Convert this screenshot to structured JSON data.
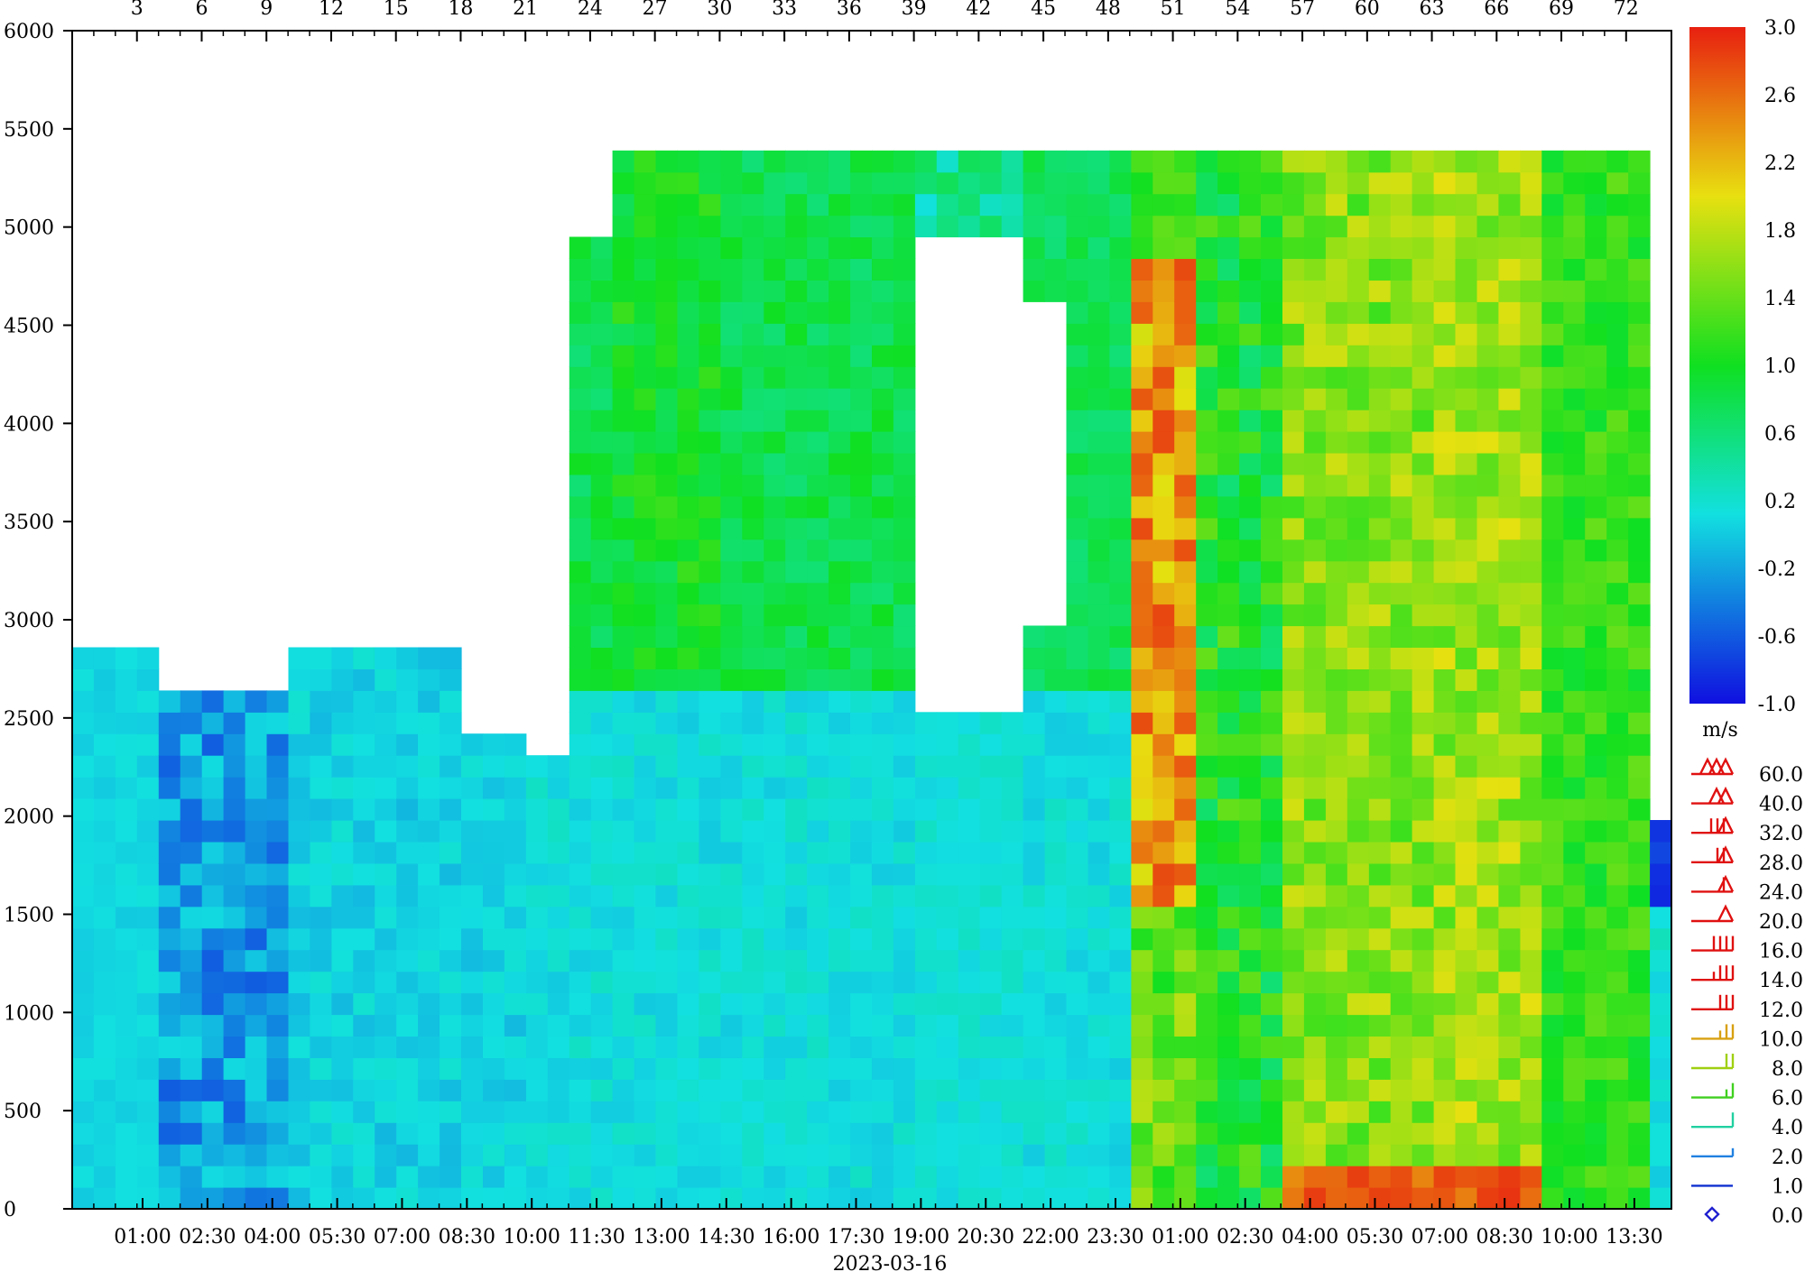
{
  "chart_data": {
    "type": "heatmap",
    "title": "",
    "xlabel": "2023-03-16",
    "ylabel": "",
    "value_unit": "m/s",
    "y_ticks": [
      0,
      500,
      1000,
      1500,
      2000,
      2500,
      3000,
      3500,
      4000,
      4500,
      5000,
      5500,
      6000
    ],
    "ylim": [
      0,
      6000
    ],
    "top_ticks": [
      "3",
      "6",
      "9",
      "12",
      "15",
      "18",
      "21",
      "24",
      "27",
      "30",
      "33",
      "36",
      "39",
      "42",
      "45",
      "48",
      "51",
      "54",
      "57",
      "60",
      "63",
      "66",
      "69",
      "72"
    ],
    "time_ticks": [
      "01:00",
      "02:30",
      "04:00",
      "05:30",
      "07:00",
      "08:30",
      "10:00",
      "11:30",
      "13:00",
      "14:30",
      "16:00",
      "17:30",
      "19:00",
      "20:30",
      "22:00",
      "23:30",
      "01:00",
      "02:30",
      "04:00",
      "05:30",
      "07:00",
      "08:30",
      "10:00",
      "13:30"
    ],
    "colorbar": {
      "ticks": [
        "3.0",
        "2.6",
        "2.2",
        "1.8",
        "1.4",
        "1.0",
        "0.6",
        "0.2",
        "-0.2",
        "-0.6",
        "-1.0"
      ],
      "range": [
        -1.0,
        3.0
      ],
      "colors": [
        "#1010e0",
        "#12e0e0",
        "#10e020",
        "#e8e010",
        "#e82010"
      ],
      "unit_label": "m/s"
    },
    "wind_legend": {
      "labels": [
        "60.0",
        "40.0",
        "32.0",
        "28.0",
        "24.0",
        "20.0",
        "16.0",
        "14.0",
        "12.0",
        "10.0",
        "8.0",
        "6.0",
        "4.0",
        "2.0",
        "1.0",
        "0.0"
      ],
      "colors": [
        "#e01010",
        "#e01010",
        "#e01010",
        "#e01010",
        "#e01010",
        "#e01010",
        "#e01010",
        "#e01010",
        "#e01010",
        "#d8a010",
        "#a0d010",
        "#40d020",
        "#20d0a0",
        "#2080e0",
        "#1030d0",
        "#2020d0"
      ]
    },
    "grid": {
      "columns": 74,
      "rows": 53,
      "cell_height_m": 110,
      "profiles": [
        {
          "col_start": 0,
          "col_end": 3,
          "top_m": 2900,
          "pattern": "low",
          "values": [
            0.0,
            0.15
          ]
        },
        {
          "col_start": 4,
          "col_end": 9,
          "top_m": 2650,
          "pattern": "low",
          "values": [
            -0.6,
            0.1
          ]
        },
        {
          "col_start": 10,
          "col_end": 13,
          "top_m": 2950,
          "pattern": "low",
          "values": [
            -0.1,
            0.2
          ]
        },
        {
          "col_start": 14,
          "col_end": 17,
          "top_m": 2900,
          "pattern": "low",
          "values": [
            -0.1,
            0.2
          ]
        },
        {
          "col_start": 18,
          "col_end": 20,
          "top_m": 2500,
          "pattern": "low",
          "values": [
            -0.1,
            0.2
          ]
        },
        {
          "col_start": 21,
          "col_end": 22,
          "top_m": 2400,
          "pattern": "low",
          "values": [
            0.0,
            0.25
          ]
        },
        {
          "col_start": 23,
          "col_end": 24,
          "top_m": 5000,
          "pattern": "low-high",
          "values": [
            0.0,
            1.0
          ]
        },
        {
          "col_start": 25,
          "col_end": 29,
          "top_m": 5450,
          "pattern": "low-high",
          "values": [
            0.0,
            1.2
          ]
        },
        {
          "col_start": 30,
          "col_end": 32,
          "top_m": 5450,
          "pattern": "low-high",
          "values": [
            0.0,
            1.0
          ]
        },
        {
          "col_start": 33,
          "col_end": 38,
          "top_m": 5450,
          "pattern": "low-high",
          "values": [
            0.0,
            1.0
          ]
        },
        {
          "col_start": 39,
          "col_end": 43,
          "top_m": 5450,
          "pattern": "gap",
          "values": [
            0.1,
            0.8
          ]
        },
        {
          "col_start": 44,
          "col_end": 48,
          "top_m": 5450,
          "pattern": "low-high",
          "values": [
            0.1,
            0.9
          ]
        },
        {
          "col_start": 49,
          "col_end": 51,
          "top_m": 5450,
          "pattern": "jet",
          "values": [
            1.0,
            2.8
          ]
        },
        {
          "col_start": 52,
          "col_end": 55,
          "top_m": 5450,
          "pattern": "mid",
          "values": [
            0.6,
            1.4
          ]
        },
        {
          "col_start": 56,
          "col_end": 62,
          "top_m": 5450,
          "pattern": "warm",
          "values": [
            1.2,
            1.9
          ]
        },
        {
          "col_start": 63,
          "col_end": 67,
          "top_m": 5450,
          "pattern": "warm",
          "values": [
            1.3,
            2.0
          ]
        },
        {
          "col_start": 68,
          "col_end": 72,
          "top_m": 5450,
          "pattern": "mid",
          "values": [
            0.9,
            1.4
          ]
        },
        {
          "col_start": 73,
          "col_end": 73,
          "top_m": 2000,
          "pattern": "right-edge",
          "values": [
            -1.0,
            0.3
          ]
        }
      ]
    }
  }
}
